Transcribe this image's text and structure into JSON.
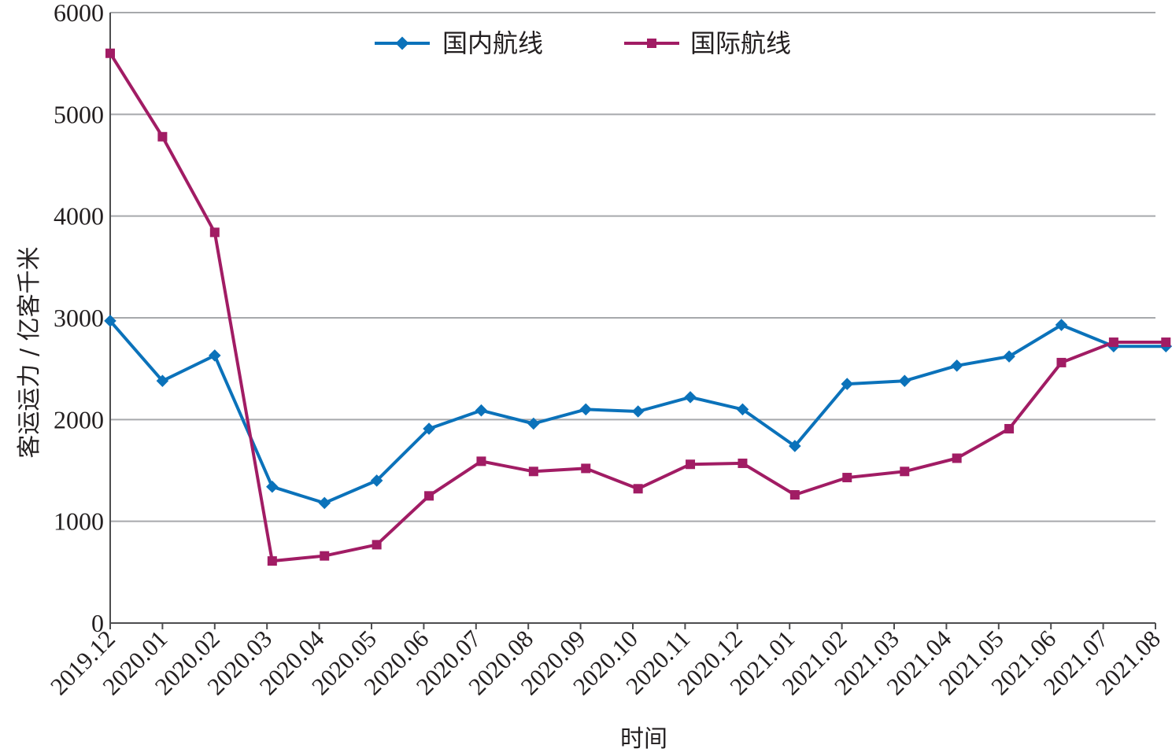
{
  "chart_data": {
    "type": "line",
    "title": "",
    "xlabel": "时间",
    "ylabel": "客运运力 / 亿客千米",
    "ylim": [
      0,
      6000
    ],
    "yticks": [
      0,
      1000,
      2000,
      3000,
      4000,
      5000,
      6000
    ],
    "grid": true,
    "legend": "top-center",
    "categories": [
      "2019.12",
      "2020.01",
      "2020.02",
      "2020.03",
      "2020.04",
      "2020.05",
      "2020.06",
      "2020.07",
      "2020.08",
      "2020.09",
      "2020.10",
      "2020.11",
      "2020.12",
      "2021.01",
      "2021.02",
      "2021.03",
      "2021.04",
      "2021.05",
      "2021.06",
      "2021.07",
      "2021.08"
    ],
    "series": [
      {
        "name": "国内航线",
        "color": "#0b72ba",
        "marker": "diamond",
        "x": [
          0.0,
          1.0,
          2.0,
          3.1,
          4.1,
          5.1,
          6.1,
          7.1,
          8.1,
          9.1,
          10.1,
          11.1,
          12.1,
          13.1,
          14.1,
          15.2,
          16.2,
          17.2,
          18.2,
          19.2,
          20.2
        ],
        "values": [
          2970,
          2380,
          2630,
          1340,
          1180,
          1400,
          1910,
          2090,
          1960,
          2100,
          2080,
          2220,
          2100,
          1740,
          2350,
          2380,
          2530,
          2620,
          2930,
          2720,
          2720
        ]
      },
      {
        "name": "国际航线",
        "color": "#a11c64",
        "marker": "square",
        "x": [
          0.0,
          1.0,
          2.0,
          3.1,
          4.1,
          5.1,
          6.1,
          7.1,
          8.1,
          9.1,
          10.1,
          11.1,
          12.1,
          13.1,
          14.1,
          15.2,
          16.2,
          17.2,
          18.2,
          19.2,
          20.2
        ],
        "values": [
          5600,
          4780,
          3840,
          610,
          660,
          770,
          1250,
          1590,
          1490,
          1520,
          1320,
          1560,
          1570,
          1260,
          1430,
          1490,
          1620,
          1910,
          2560,
          2760,
          2760
        ]
      }
    ]
  }
}
